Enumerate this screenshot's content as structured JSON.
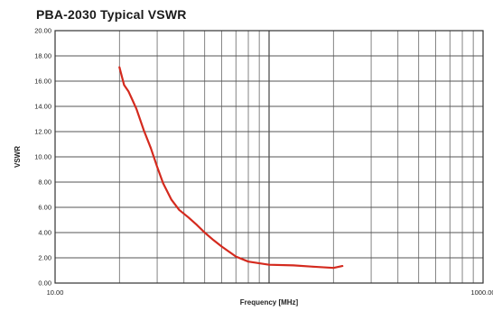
{
  "chart_data": {
    "type": "line",
    "title": "PBA-2030 Typical VSWR",
    "xlabel": "Frequency [MHz]",
    "ylabel": "VSWR",
    "x_scale": "log",
    "xlim": [
      10,
      1000
    ],
    "ylim": [
      0,
      20
    ],
    "x_tick_labels": [
      "10.00",
      "1000.00"
    ],
    "y_ticks": [
      0,
      2,
      4,
      6,
      8,
      10,
      12,
      14,
      16,
      18,
      20
    ],
    "y_tick_labels": [
      "0.00",
      "2.00",
      "4.00",
      "6.00",
      "8.00",
      "10.00",
      "12.00",
      "14.00",
      "16.00",
      "18.00",
      "20.00"
    ],
    "grid": true,
    "series": [
      {
        "color": "#d42a1e",
        "x": [
          20,
          21,
          22,
          23,
          24,
          26,
          28,
          30,
          32,
          35,
          38,
          42,
          46,
          50,
          55,
          60,
          70,
          80,
          100,
          130,
          160,
          200,
          220
        ],
        "y": [
          17.1,
          15.7,
          15.2,
          14.5,
          13.8,
          12.1,
          10.7,
          9.2,
          7.9,
          6.6,
          5.8,
          5.2,
          4.6,
          4.0,
          3.4,
          2.9,
          2.1,
          1.7,
          1.45,
          1.4,
          1.3,
          1.2,
          1.35
        ]
      }
    ]
  }
}
